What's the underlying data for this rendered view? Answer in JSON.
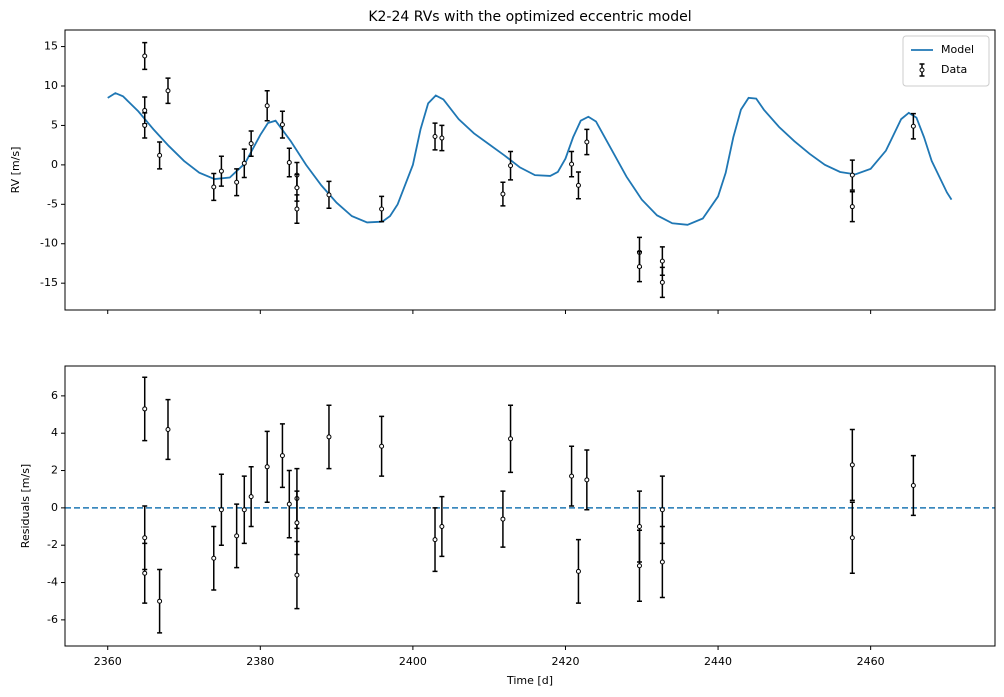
{
  "chart_data": [
    {
      "type": "line",
      "title": "K2-24 RVs with the optimized eccentric model",
      "ylabel": "RV [m/s]",
      "xlim": [
        2354.4,
        2476.3
      ],
      "ylim": [
        -18.4,
        17.1
      ],
      "xticks": [
        2360,
        2380,
        2400,
        2420,
        2440,
        2460
      ],
      "yticks": [
        -15,
        -10,
        -5,
        0,
        5,
        10,
        15
      ],
      "legend": "upper right",
      "series": [
        {
          "name": "Model",
          "type": "line",
          "color": "#1f77b4",
          "x": [
            2360,
            2361,
            2362,
            2364,
            2366,
            2368,
            2370,
            2372,
            2374,
            2376,
            2378,
            2380,
            2381,
            2382,
            2384,
            2386,
            2388,
            2390,
            2392,
            2394,
            2396,
            2397,
            2398,
            2400,
            2401,
            2402,
            2403,
            2404,
            2406,
            2408,
            2410,
            2412,
            2414,
            2416,
            2418,
            2419,
            2420,
            2421,
            2422,
            2423,
            2424,
            2426,
            2428,
            2430,
            2432,
            2434,
            2436,
            2438,
            2440,
            2441,
            2442,
            2443,
            2444,
            2445,
            2446,
            2448,
            2450,
            2452,
            2454,
            2456,
            2458,
            2460,
            2462,
            2464,
            2465,
            2466,
            2467,
            2468,
            2470,
            2470.6
          ],
          "values": [
            8.5,
            9.1,
            8.7,
            6.8,
            4.5,
            2.4,
            0.5,
            -1.0,
            -1.8,
            -1.6,
            0.2,
            3.8,
            5.3,
            5.6,
            3.0,
            0.0,
            -2.6,
            -4.8,
            -6.5,
            -7.3,
            -7.2,
            -6.5,
            -5.0,
            0.0,
            4.5,
            7.8,
            8.8,
            8.3,
            5.8,
            4.0,
            2.6,
            1.2,
            -0.3,
            -1.3,
            -1.4,
            -0.9,
            0.8,
            3.5,
            5.6,
            6.1,
            5.5,
            2.0,
            -1.5,
            -4.4,
            -6.4,
            -7.4,
            -7.6,
            -6.8,
            -4.0,
            -1.0,
            3.5,
            7.0,
            8.5,
            8.4,
            7.0,
            4.8,
            3.0,
            1.4,
            0.0,
            -0.9,
            -1.2,
            -0.5,
            1.8,
            5.8,
            6.6,
            6.0,
            3.5,
            0.5,
            -3.5,
            -4.4
          ]
        },
        {
          "name": "Data",
          "type": "errorbar",
          "color": "#000000",
          "x": [
            2364.85,
            2364.85,
            2364.85,
            2366.8,
            2367.9,
            2373.9,
            2374.9,
            2376.9,
            2377.9,
            2378.8,
            2380.9,
            2382.9,
            2383.8,
            2384.8,
            2384.8,
            2384.8,
            2389.0,
            2395.9,
            2402.9,
            2403.8,
            2411.8,
            2412.8,
            2420.8,
            2421.7,
            2422.8,
            2429.7,
            2429.7,
            2432.7,
            2432.7,
            2457.6,
            2457.6,
            2465.6
          ],
          "values": [
            13.8,
            6.9,
            5.0,
            1.2,
            9.4,
            -2.8,
            -0.8,
            -2.2,
            0.2,
            2.7,
            7.5,
            5.1,
            0.3,
            -1.3,
            -2.9,
            -5.6,
            -3.8,
            -5.6,
            3.6,
            3.4,
            -3.7,
            -0.1,
            0.1,
            -2.6,
            2.9,
            -11.1,
            -12.9,
            -12.2,
            -14.9,
            -1.3,
            -5.3,
            4.9
          ],
          "errors": [
            1.7,
            1.7,
            1.6,
            1.7,
            1.6,
            1.7,
            1.9,
            1.7,
            1.8,
            1.6,
            1.9,
            1.7,
            1.8,
            1.6,
            1.7,
            1.8,
            1.7,
            1.6,
            1.7,
            1.6,
            1.5,
            1.8,
            1.6,
            1.7,
            1.6,
            1.9,
            1.9,
            1.8,
            1.9,
            1.9,
            1.9,
            1.6
          ]
        }
      ]
    },
    {
      "type": "errorbar",
      "ylabel": "Residuals [m/s]",
      "xlabel": "Time [d]",
      "xlim": [
        2354.4,
        2476.3
      ],
      "ylim": [
        -7.4,
        7.6
      ],
      "xticks": [
        2360,
        2380,
        2400,
        2420,
        2440,
        2460
      ],
      "yticks": [
        -6,
        -4,
        -2,
        0,
        2,
        4,
        6
      ],
      "hline": 0,
      "hline_color": "#1f77b4",
      "series": [
        {
          "type": "errorbar",
          "color": "#000000",
          "x": [
            2364.85,
            2364.85,
            2364.85,
            2366.8,
            2367.9,
            2373.9,
            2374.9,
            2376.9,
            2377.9,
            2378.8,
            2380.9,
            2382.9,
            2383.8,
            2384.8,
            2384.8,
            2384.8,
            2389.0,
            2395.9,
            2402.9,
            2403.8,
            2411.8,
            2412.8,
            2420.8,
            2421.7,
            2422.8,
            2429.7,
            2429.7,
            2432.7,
            2432.7,
            2457.6,
            2457.6,
            2465.6
          ],
          "values": [
            5.3,
            -1.6,
            -3.5,
            -5.0,
            4.2,
            -2.7,
            -0.1,
            -1.5,
            -0.1,
            0.6,
            2.2,
            2.8,
            0.2,
            0.5,
            -0.8,
            -3.6,
            3.8,
            3.3,
            -1.7,
            -1.0,
            -0.6,
            3.7,
            1.7,
            -3.4,
            1.5,
            -1.0,
            -3.1,
            -0.1,
            -2.9,
            2.3,
            -1.6,
            1.2
          ],
          "errors": [
            1.7,
            1.7,
            1.6,
            1.7,
            1.6,
            1.7,
            1.9,
            1.7,
            1.8,
            1.6,
            1.9,
            1.7,
            1.8,
            1.6,
            1.7,
            1.8,
            1.7,
            1.6,
            1.7,
            1.6,
            1.5,
            1.8,
            1.6,
            1.7,
            1.6,
            1.9,
            1.9,
            1.8,
            1.9,
            1.9,
            1.9,
            1.6
          ]
        }
      ]
    }
  ]
}
